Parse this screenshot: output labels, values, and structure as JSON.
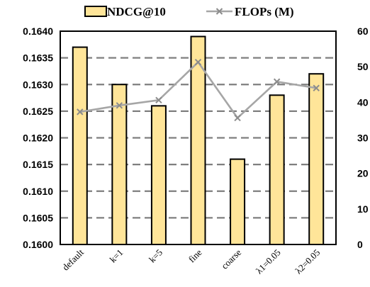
{
  "chart_data": {
    "type": "bar",
    "categories": [
      "default",
      "k=1",
      "k=5",
      "fine",
      "coarse",
      "λ1=0.05",
      "λ2=0.05"
    ],
    "series": [
      {
        "name": "NDCG@10",
        "type": "bar",
        "axis": "left",
        "values": [
          0.1637,
          0.163,
          0.1626,
          0.1639,
          0.1616,
          0.1628,
          0.1632
        ],
        "color": "#FFE599"
      },
      {
        "name": "FLOPs (M)",
        "type": "line",
        "axis": "right",
        "values": [
          37.3,
          39.1,
          40.6,
          51.3,
          35.6,
          45.8,
          44.0
        ],
        "color": "#A6A6A6"
      }
    ],
    "y_left": {
      "ylim": [
        0.16,
        0.164
      ],
      "ticks": [
        "0.1600",
        "0.1605",
        "0.1610",
        "0.1615",
        "0.1620",
        "0.1625",
        "0.1630",
        "0.1635",
        "0.1640"
      ]
    },
    "y_right": {
      "ylim": [
        0,
        60
      ],
      "ticks": [
        "0",
        "10",
        "20",
        "30",
        "40",
        "50",
        "60"
      ]
    },
    "grid": "horizontal dashed",
    "legend_position": "top"
  }
}
